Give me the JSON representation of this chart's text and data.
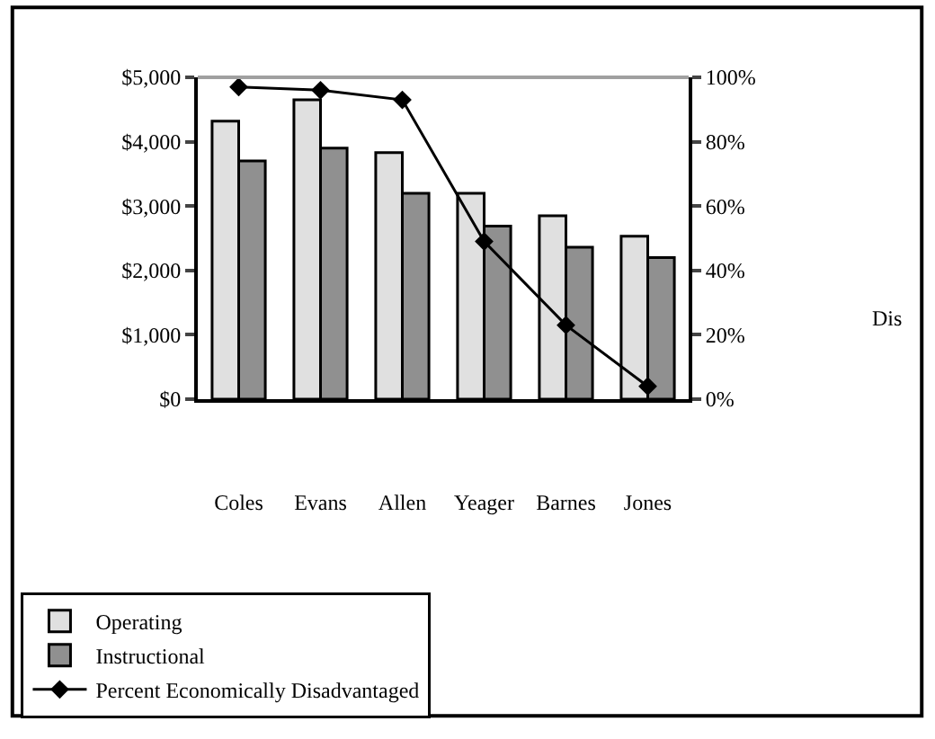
{
  "chart_data": {
    "type": "bar",
    "categories": [
      "Coles",
      "Evans",
      "Allen",
      "Yeager",
      "Barnes",
      "Jones"
    ],
    "series": [
      {
        "name": "Operating",
        "color": "#e0e0e0",
        "values": [
          4320,
          4650,
          3830,
          3200,
          2850,
          2530
        ]
      },
      {
        "name": "Instructional",
        "color": "#909090",
        "values": [
          3700,
          3900,
          3200,
          2690,
          2360,
          2200
        ]
      },
      {
        "name": "Percent Economically Disadvantaged",
        "type": "line",
        "axis": "y2",
        "color": "#000000",
        "marker": "diamond",
        "values": [
          97,
          96,
          93,
          49,
          23,
          4
        ]
      }
    ],
    "ylim": [
      0,
      5000
    ],
    "yticks": [
      {
        "value": 0,
        "label": "$0"
      },
      {
        "value": 1000,
        "label": "$1,000"
      },
      {
        "value": 2000,
        "label": "$2,000"
      },
      {
        "value": 3000,
        "label": "$3,000"
      },
      {
        "value": 4000,
        "label": "$4,000"
      },
      {
        "value": 5000,
        "label": "$5,000"
      }
    ],
    "y2lim": [
      0,
      100
    ],
    "y2ticks": [
      {
        "value": 0,
        "label": "0%"
      },
      {
        "value": 20,
        "label": "20%"
      },
      {
        "value": 40,
        "label": "40%"
      },
      {
        "value": 60,
        "label": "60%"
      },
      {
        "value": 80,
        "label": "80%"
      },
      {
        "value": 100,
        "label": "100%"
      }
    ],
    "annotations": [
      "Dis"
    ],
    "legend": "bottom"
  }
}
